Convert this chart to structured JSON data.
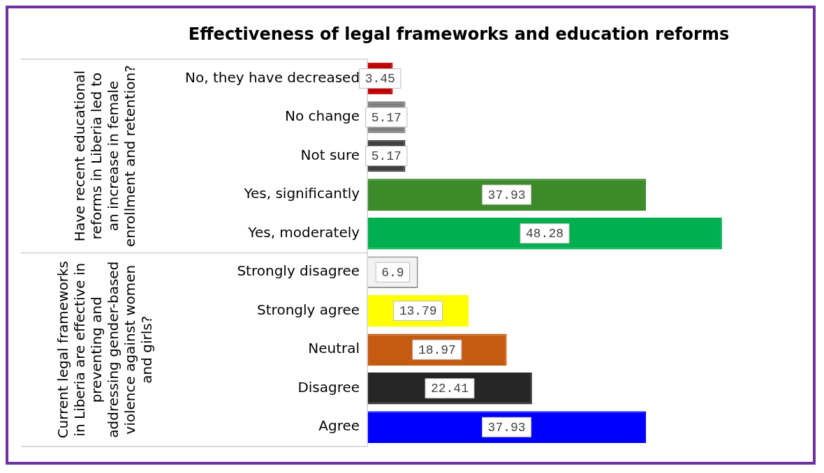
{
  "chart_data": {
    "type": "bar",
    "orientation": "horizontal",
    "title": "Effectiveness of legal frameworks and education reforms",
    "categories": [
      "No, they have decreased",
      "No change",
      "Not sure",
      "Yes, significantly",
      "Yes, moderately",
      "Strongly disagree",
      "Strongly agree",
      "Neutral",
      "Disagree",
      "Agree"
    ],
    "values": [
      3.45,
      5.17,
      5.17,
      37.93,
      48.28,
      6.9,
      13.79,
      18.97,
      22.41,
      37.93
    ],
    "colors": [
      "#c00000",
      "#808080",
      "#404040",
      "#3d8a2a",
      "#00b050",
      "#f2f2f2",
      "#ffff00",
      "#c55a11",
      "#262626",
      "#0000ff"
    ],
    "data_labels": true,
    "grid": false,
    "legend": false,
    "annotations": [
      "Have recent educational reforms in Liberia led to an increase in female enrollment and retention?",
      "Current legal frameworks in Liberia are effective in preventing and addressing gender-based violence against women and girls?"
    ]
  }
}
